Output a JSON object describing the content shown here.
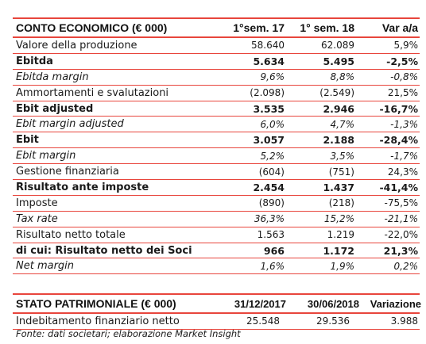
{
  "income_statement": {
    "headers": [
      "CONTO ECONOMICO (€ 000)",
      "1°sem. 17",
      "1° sem. 18",
      "Var a/a"
    ],
    "rows": [
      {
        "label": "Valore della produzione",
        "v1": "58.640",
        "v2": "62.089",
        "v3": "5,9%",
        "style": "normal"
      },
      {
        "label": "Ebitda",
        "v1": "5.634",
        "v2": "5.495",
        "v3": "-2,5%",
        "style": "bold"
      },
      {
        "label": "Ebitda margin",
        "v1": "9,6%",
        "v2": "8,8%",
        "v3": "-0,8%",
        "style": "italic"
      },
      {
        "label": "Ammortamenti e svalutazioni",
        "v1": "(2.098)",
        "v2": "(2.549)",
        "v3": "21,5%",
        "style": "normal"
      },
      {
        "label": "Ebit adjusted",
        "v1": "3.535",
        "v2": "2.946",
        "v3": "-16,7%",
        "style": "bold"
      },
      {
        "label": "Ebit margin adjusted",
        "v1": "6,0%",
        "v2": "4,7%",
        "v3": "-1,3%",
        "style": "italic"
      },
      {
        "label": "Ebit",
        "v1": "3.057",
        "v2": "2.188",
        "v3": "-28,4%",
        "style": "bold"
      },
      {
        "label": "Ebit margin",
        "v1": "5,2%",
        "v2": "3,5%",
        "v3": "-1,7%",
        "style": "italic"
      },
      {
        "label": "Gestione finanziaria",
        "v1": "(604)",
        "v2": "(751)",
        "v3": "24,3%",
        "style": "normal"
      },
      {
        "label": "Risultato ante imposte",
        "v1": "2.454",
        "v2": "1.437",
        "v3": "-41,4%",
        "style": "bold"
      },
      {
        "label": "Imposte",
        "v1": "(890)",
        "v2": "(218)",
        "v3": "-75,5%",
        "style": "normal"
      },
      {
        "label": "Tax rate",
        "v1": "36,3%",
        "v2": "15,2%",
        "v3": "-21,1%",
        "style": "italic"
      },
      {
        "label": "Risultato netto totale",
        "v1": "1.563",
        "v2": "1.219",
        "v3": "-22,0%",
        "style": "normal"
      },
      {
        "label": "di cui: Risultato netto dei Soci",
        "v1": "966",
        "v2": "1.172",
        "v3": "21,3%",
        "style": "bold"
      },
      {
        "label": "Net margin",
        "v1": "1,6%",
        "v2": "1,9%",
        "v3": "0,2%",
        "style": "italic"
      }
    ]
  },
  "balance_sheet": {
    "headers": [
      "STATO PATRIMONIALE (€ 000)",
      "31/12/2017",
      "30/06/2018",
      "Variazione"
    ],
    "rows": [
      {
        "label": "Indebitamento finanziario netto",
        "v1": "25.548",
        "v2": "29.536",
        "v3": "3.988",
        "style": "normal"
      }
    ]
  },
  "source": "Fonte: dati societari; elaborazione Market Insight",
  "colors": {
    "rule": "#e8453c",
    "text": "#1a1a1a"
  }
}
